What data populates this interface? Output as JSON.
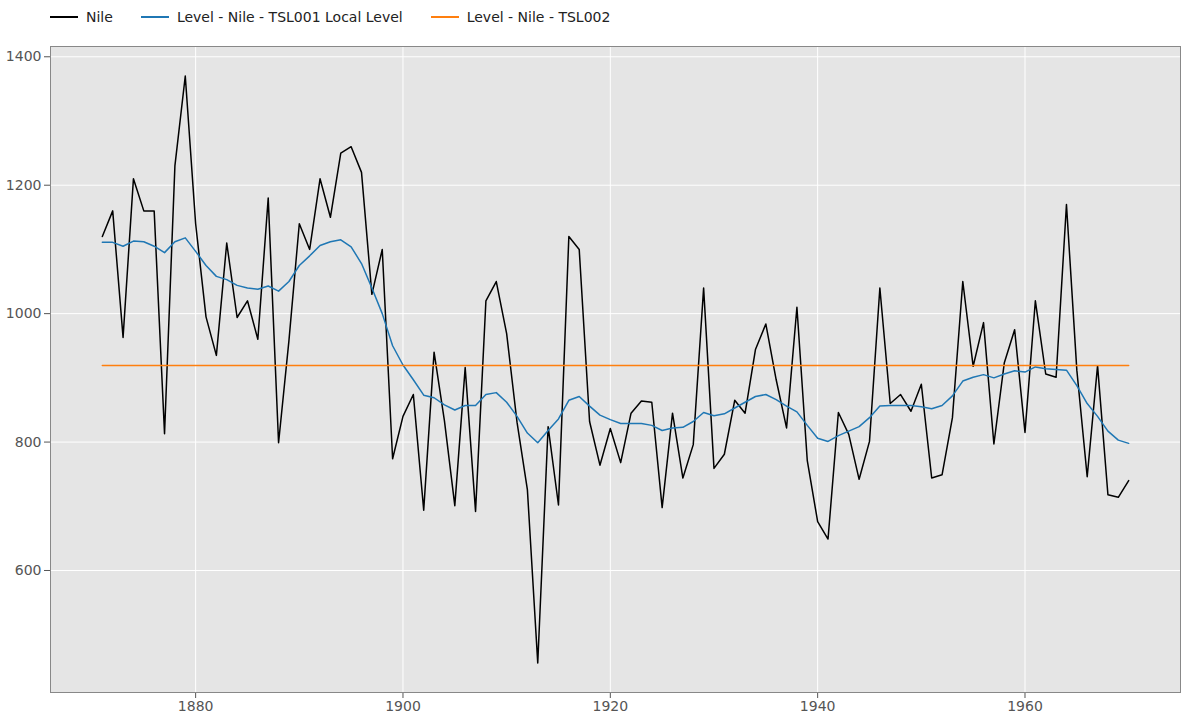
{
  "chart_data": {
    "type": "line",
    "x": [
      1871,
      1872,
      1873,
      1874,
      1875,
      1876,
      1877,
      1878,
      1879,
      1880,
      1881,
      1882,
      1883,
      1884,
      1885,
      1886,
      1887,
      1888,
      1889,
      1890,
      1891,
      1892,
      1893,
      1894,
      1895,
      1896,
      1897,
      1898,
      1899,
      1900,
      1901,
      1902,
      1903,
      1904,
      1905,
      1906,
      1907,
      1908,
      1909,
      1910,
      1911,
      1912,
      1913,
      1914,
      1915,
      1916,
      1917,
      1918,
      1919,
      1920,
      1921,
      1922,
      1923,
      1924,
      1925,
      1926,
      1927,
      1928,
      1929,
      1930,
      1931,
      1932,
      1933,
      1934,
      1935,
      1936,
      1937,
      1938,
      1939,
      1940,
      1941,
      1942,
      1943,
      1944,
      1945,
      1946,
      1947,
      1948,
      1949,
      1950,
      1951,
      1952,
      1953,
      1954,
      1955,
      1956,
      1957,
      1958,
      1959,
      1960,
      1961,
      1962,
      1963,
      1964,
      1965,
      1966,
      1967,
      1968,
      1969,
      1970
    ],
    "series": [
      {
        "name": "Nile",
        "color": "#000000",
        "values": [
          1120,
          1160,
          963,
          1210,
          1160,
          1160,
          813,
          1230,
          1370,
          1140,
          995,
          935,
          1110,
          994,
          1020,
          960,
          1180,
          799,
          958,
          1140,
          1100,
          1210,
          1150,
          1250,
          1260,
          1220,
          1030,
          1100,
          774,
          840,
          874,
          694,
          940,
          833,
          701,
          916,
          692,
          1020,
          1050,
          969,
          831,
          726,
          456,
          824,
          702,
          1120,
          1100,
          832,
          764,
          821,
          768,
          845,
          864,
          862,
          698,
          845,
          744,
          796,
          1040,
          759,
          781,
          865,
          845,
          944,
          984,
          897,
          822,
          1010,
          771,
          676,
          649,
          846,
          812,
          742,
          801,
          1040,
          860,
          874,
          848,
          890,
          744,
          749,
          838,
          1050,
          918,
          986,
          797,
          923,
          975,
          815,
          1020,
          906,
          901,
          1170,
          912,
          746,
          919,
          718,
          714,
          740
        ]
      },
      {
        "name": "Level - Nile - TSL001 Local Level",
        "color": "#1f77b4",
        "values": [
          1111,
          1111,
          1105,
          1113,
          1112,
          1105,
          1095,
          1112,
          1118,
          1097,
          1075,
          1058,
          1053,
          1044,
          1040,
          1038,
          1043,
          1035,
          1050,
          1075,
          1090,
          1106,
          1112,
          1115,
          1104,
          1078,
          1040,
          1000,
          950,
          920,
          897,
          873,
          869,
          858,
          850,
          857,
          857,
          874,
          877,
          862,
          840,
          814,
          799,
          818,
          836,
          865,
          871,
          856,
          842,
          835,
          829,
          829,
          829,
          826,
          818,
          822,
          823,
          832,
          846,
          841,
          844,
          853,
          862,
          871,
          874,
          866,
          856,
          847,
          826,
          806,
          801,
          810,
          817,
          824,
          838,
          856,
          857,
          857,
          857,
          855,
          852,
          857,
          872,
          895,
          901,
          905,
          900,
          906,
          911,
          909,
          917,
          914,
          913,
          912,
          888,
          860,
          840,
          817,
          803,
          798
        ]
      },
      {
        "name": "Level - Nile - TSL002",
        "color": "#ff7f0e",
        "values": [
          919.35,
          919.35,
          919.35,
          919.35,
          919.35,
          919.35,
          919.35,
          919.35,
          919.35,
          919.35,
          919.35,
          919.35,
          919.35,
          919.35,
          919.35,
          919.35,
          919.35,
          919.35,
          919.35,
          919.35,
          919.35,
          919.35,
          919.35,
          919.35,
          919.35,
          919.35,
          919.35,
          919.35,
          919.35,
          919.35,
          919.35,
          919.35,
          919.35,
          919.35,
          919.35,
          919.35,
          919.35,
          919.35,
          919.35,
          919.35,
          919.35,
          919.35,
          919.35,
          919.35,
          919.35,
          919.35,
          919.35,
          919.35,
          919.35,
          919.35,
          919.35,
          919.35,
          919.35,
          919.35,
          919.35,
          919.35,
          919.35,
          919.35,
          919.35,
          919.35,
          919.35,
          919.35,
          919.35,
          919.35,
          919.35,
          919.35,
          919.35,
          919.35,
          919.35,
          919.35,
          919.35,
          919.35,
          919.35,
          919.35,
          919.35,
          919.35,
          919.35,
          919.35,
          919.35,
          919.35,
          919.35,
          919.35,
          919.35,
          919.35,
          919.35,
          919.35,
          919.35,
          919.35,
          919.35,
          919.35,
          919.35,
          919.35,
          919.35,
          919.35,
          919.35,
          919.35,
          919.35,
          919.35,
          919.35,
          919.35
        ]
      }
    ],
    "xlim": [
      1866,
      1975
    ],
    "xticks": [
      1880,
      1900,
      1920,
      1940,
      1960
    ],
    "ylim": [
      410,
      1416
    ],
    "yticks": [
      600,
      800,
      1000,
      1200,
      1400
    ],
    "grid": true,
    "legend": "top"
  }
}
